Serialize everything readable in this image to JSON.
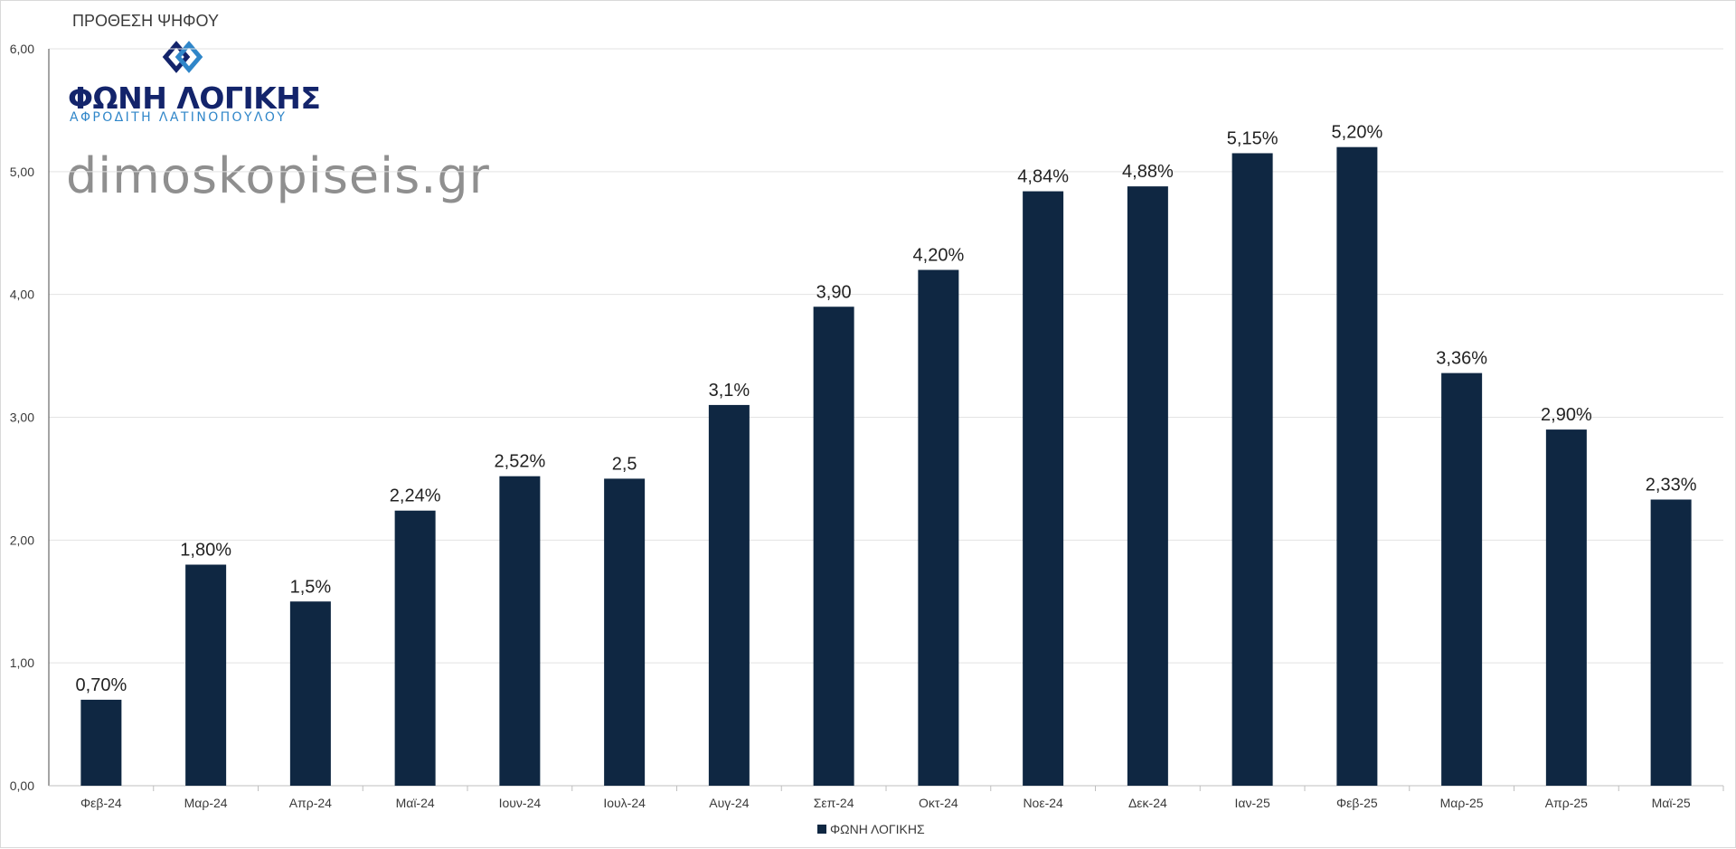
{
  "chart_title": "ΠΡΟΘΕΣΗ ΨΗΦΟΥ",
  "logo": {
    "name": "ΦΩΝΗ ΛΟΓΙΚΗΣ",
    "subtitle": "ΑΦΡΟΔΙΤΗ ΛΑΤΙΝΟΠΟΥΛΟΥ"
  },
  "watermark": "dimoskopiseis.gr",
  "colors": {
    "bar": "#0f2742",
    "grid": "#e3e3e3",
    "axis_text": "#3a3a3a",
    "logo_dark": "#13246b",
    "logo_light": "#2f86c9"
  },
  "chart_data": {
    "type": "bar",
    "title": "ΠΡΟΘΕΣΗ ΨΗΦΟΥ",
    "categories": [
      "Φεβ-24",
      "Μαρ-24",
      "Απρ-24",
      "Μαϊ-24",
      "Ιουν-24",
      "Ιουλ-24",
      "Αυγ-24",
      "Σεπ-24",
      "Οκτ-24",
      "Νοε-24",
      "Δεκ-24",
      "Ιαν-25",
      "Φεβ-25",
      "Μαρ-25",
      "Απρ-25",
      "Μαϊ-25"
    ],
    "series": [
      {
        "name": "ΦΩΝΗ ΛΟΓΙΚΗΣ",
        "values": [
          0.7,
          1.8,
          1.5,
          2.24,
          2.52,
          2.5,
          3.1,
          3.9,
          4.2,
          4.84,
          4.88,
          5.15,
          5.2,
          3.36,
          2.9,
          2.33
        ],
        "data_labels": [
          "0,70%",
          "1,80%",
          "1,5%",
          "2,24%",
          "2,52%",
          "2,5",
          "3,1%",
          "3,90",
          "4,20%",
          "4,84%",
          "4,88%",
          "5,15%",
          "5,20%",
          "3,36%",
          "2,90%",
          "2,33%"
        ]
      }
    ],
    "yticks": [
      "0,00",
      "1,00",
      "2,00",
      "3,00",
      "4,00",
      "5,00",
      "6,00"
    ],
    "ylim": [
      0,
      6
    ],
    "grid": true,
    "legend": "bottom-center"
  }
}
